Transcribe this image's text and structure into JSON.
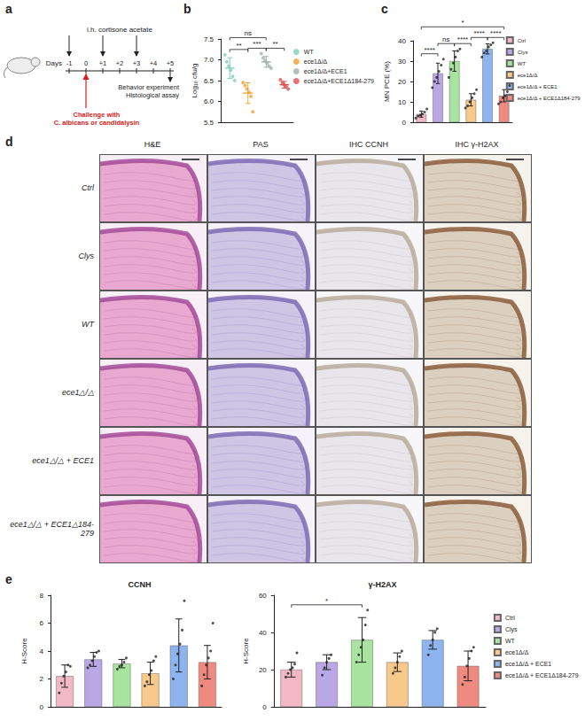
{
  "panel_labels": [
    "a",
    "b",
    "c",
    "d",
    "e"
  ],
  "timeline": {
    "axis_label": "Days",
    "days": [
      "-1",
      "0",
      "+1",
      "+2",
      "+3",
      "+4",
      "+5"
    ],
    "treatment": {
      "label": "i.h. cortisone acetate",
      "days": [
        "-1",
        "+1",
        "+3"
      ]
    },
    "challenge": {
      "lines": [
        "Challenge with",
        "C. albicans or candidalysin"
      ],
      "day": "0"
    },
    "endpoint": {
      "lines": [
        "Behavior experiment",
        "Histological assay"
      ],
      "day": "+5"
    }
  },
  "chart_data": [
    {
      "type": "scatter",
      "ylabel": "Log₁₀ cfu/g",
      "categories": [
        "WT",
        "ece1Δ/Δ",
        "ece1Δ/Δ+ECE1",
        "ece1Δ/Δ+ECE1Δ184-279"
      ],
      "colors": [
        "#7fcfbf",
        "#f0a030",
        "#a3b2ad",
        "#dd5050"
      ],
      "points": [
        [
          7.12,
          6.95,
          6.85,
          6.75,
          6.6,
          6.5
        ],
        [
          6.45,
          6.38,
          6.3,
          6.22,
          6.12,
          5.75
        ],
        [
          7.15,
          7.05,
          6.98,
          6.92,
          6.85,
          6.8
        ],
        [
          6.52,
          6.45,
          6.4,
          6.35,
          6.3
        ]
      ],
      "means": [
        6.8,
        6.2,
        6.95,
        6.4
      ],
      "errors": [
        0.25,
        0.25,
        0.13,
        0.08
      ],
      "ylim": [
        5.5,
        7.5
      ],
      "yticks": [
        5.5,
        {
          "value": 6,
          "label": "6.0"
        },
        6.5,
        {
          "value": 7,
          "label": "7.0"
        },
        7.5
      ],
      "annotations": [
        {
          "from": 0,
          "to": 2,
          "label": "ns"
        },
        {
          "from": 1,
          "to": 2,
          "label": "***"
        },
        {
          "from": 0,
          "to": 1,
          "label": "**"
        },
        {
          "from": 2,
          "to": 3,
          "label": "**"
        }
      ],
      "legend": "right",
      "tick_labels": "y"
    },
    {
      "type": "bar",
      "ylabel": "MN PCE (%)",
      "categories": [
        "Ctrl",
        "Clys",
        "WT",
        "ece1Δ/Δ",
        "ece1Δ/Δ + ECE1",
        "ece1Δ/Δ + ECE1Δ184-279"
      ],
      "colors": [
        "#f2b8c6",
        "#b9a7e6",
        "#a8e4a0",
        "#f8c98a",
        "#8db4ee",
        "#ef8a80"
      ],
      "values": [
        4,
        24,
        30,
        11,
        36,
        13
      ],
      "errors": [
        1.5,
        5,
        5,
        3,
        2.5,
        3
      ],
      "points": [
        [
          2,
          3,
          3.5,
          4,
          5,
          6.5
        ],
        [
          17,
          20,
          22,
          25,
          28,
          31
        ],
        [
          22,
          26,
          29,
          32,
          35,
          36
        ],
        [
          7,
          8,
          10,
          12,
          14,
          16
        ],
        [
          32,
          34,
          35,
          37,
          38,
          39
        ],
        [
          9,
          10,
          12,
          13,
          15,
          18
        ]
      ],
      "ylim": [
        0,
        40
      ],
      "yticks": [
        0,
        10,
        20,
        30,
        40
      ],
      "annotations": [
        {
          "from": 0,
          "to": 1,
          "label": "****"
        },
        {
          "from": 1,
          "to": 2,
          "label": "ns"
        },
        {
          "from": 2,
          "to": 3,
          "label": "****"
        },
        {
          "from": 3,
          "to": 4,
          "label": "****"
        },
        {
          "from": 4,
          "to": 5,
          "label": "****"
        },
        {
          "from": 0,
          "to": 5,
          "label": "*"
        }
      ],
      "legend": "upper right",
      "tick_labels": "y"
    },
    {
      "type": "bar",
      "title": "CCNH",
      "ylabel": "H-Score",
      "categories": [
        "Ctrl",
        "Clys",
        "WT",
        "ece1Δ/Δ",
        "ece1Δ/Δ + ECE1",
        "ece1Δ/Δ + ECE1Δ184-279"
      ],
      "colors": [
        "#f2b8c6",
        "#b9a7e6",
        "#a8e4a0",
        "#f8c98a",
        "#8db4ee",
        "#ef8a80"
      ],
      "values": [
        2.2,
        3.4,
        3.1,
        2.4,
        4.4,
        3.2
      ],
      "errors": [
        0.8,
        0.5,
        0.3,
        0.8,
        1.9,
        1.2
      ],
      "points": [
        [
          1,
          1.7,
          2.2,
          2.5,
          3,
          2.9
        ],
        [
          2.8,
          3,
          3.3,
          3.6,
          3.9,
          4
        ],
        [
          2.7,
          2.9,
          3,
          3.2,
          3.5
        ],
        [
          1.5,
          1.8,
          2.3,
          2.6,
          3.3,
          3.6
        ],
        [
          2,
          3,
          3.8,
          4.5,
          5.5,
          7.6
        ],
        [
          1.5,
          2.3,
          3,
          3.5,
          4,
          6
        ]
      ],
      "ylim": [
        0,
        8
      ],
      "yticks": [
        0,
        2,
        4,
        6,
        8
      ],
      "tick_labels": "y"
    },
    {
      "type": "bar",
      "title": "γ-H2AX",
      "ylabel": "H-Score",
      "categories": [
        "Ctrl",
        "Clys",
        "WT",
        "ece1Δ/Δ",
        "ece1Δ/Δ + ECE1",
        "ece1Δ/Δ + ECE1Δ184-279"
      ],
      "colors": [
        "#f2b8c6",
        "#b9a7e6",
        "#a8e4a0",
        "#f8c98a",
        "#8db4ee",
        "#ef8a80"
      ],
      "values": [
        20,
        24,
        36,
        24,
        36,
        22
      ],
      "errors": [
        4,
        4,
        12,
        5,
        5,
        8
      ],
      "points": [
        [
          16,
          18,
          20,
          21,
          23,
          29
        ],
        [
          17,
          21,
          24,
          26,
          28
        ],
        [
          24,
          28,
          32,
          36,
          44,
          52
        ],
        [
          18,
          21,
          24,
          27,
          30
        ],
        [
          28,
          33,
          36,
          40,
          42
        ],
        [
          12,
          16,
          22,
          26,
          30,
          32
        ]
      ],
      "ylim": [
        0,
        60
      ],
      "yticks": [
        0,
        20,
        40,
        60
      ],
      "annotations": [
        {
          "from": 0,
          "to": 2,
          "label": "*"
        }
      ],
      "legend": "right",
      "tick_labels": "y"
    }
  ],
  "histology": {
    "columns": [
      "H&E",
      "PAS",
      "IHC CCNH",
      "IHC γ-H2AX"
    ],
    "rows": [
      "Ctrl",
      "Clys",
      "WT",
      "ece1△/△",
      "ece1△/△ + ECE1",
      "ece1△/△ + ECE1△184-279"
    ]
  }
}
